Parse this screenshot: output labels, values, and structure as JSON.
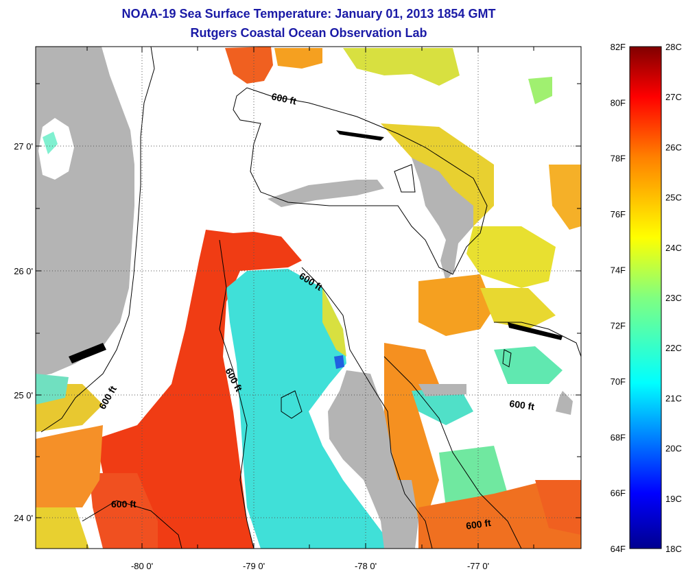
{
  "title": {
    "line1": "NOAA-19 Sea Surface Temperature:  January 01, 2013 1854 GMT",
    "line2": "Rutgers Coastal Ocean Observation Lab"
  },
  "axes": {
    "lon_labels": [
      "-80 0'",
      "-79 0'",
      "-78 0'",
      "-77 0'"
    ],
    "lat_labels": [
      "27 0'",
      "26 0'",
      "25 0'",
      "24 0'"
    ]
  },
  "contour_labels": [
    "600 ft",
    "600 ft",
    "600 ft",
    "600 ft",
    "600 ft",
    "600 ft"
  ],
  "colorbar": {
    "f_labels": [
      "82F",
      "80F",
      "78F",
      "76F",
      "74F",
      "72F",
      "70F",
      "68F",
      "66F",
      "64F"
    ],
    "c_labels": [
      "28C",
      "27C",
      "26C",
      "25C",
      "24C",
      "23C",
      "22C",
      "21C",
      "20C",
      "19C",
      "18C"
    ],
    "colors": [
      "#00008f",
      "#0000ff",
      "#0080ff",
      "#00ffff",
      "#80ff80",
      "#ffff00",
      "#ff8000",
      "#ff0000",
      "#800000"
    ]
  },
  "colors": {
    "land": "#b4b4b4",
    "cool_water": "#40e0d8",
    "warm_water": "#f03c14",
    "orange_water": "#f5a020",
    "yellow_water": "#e8e030",
    "green_water": "#80f070",
    "title": "#1a1aa6"
  }
}
